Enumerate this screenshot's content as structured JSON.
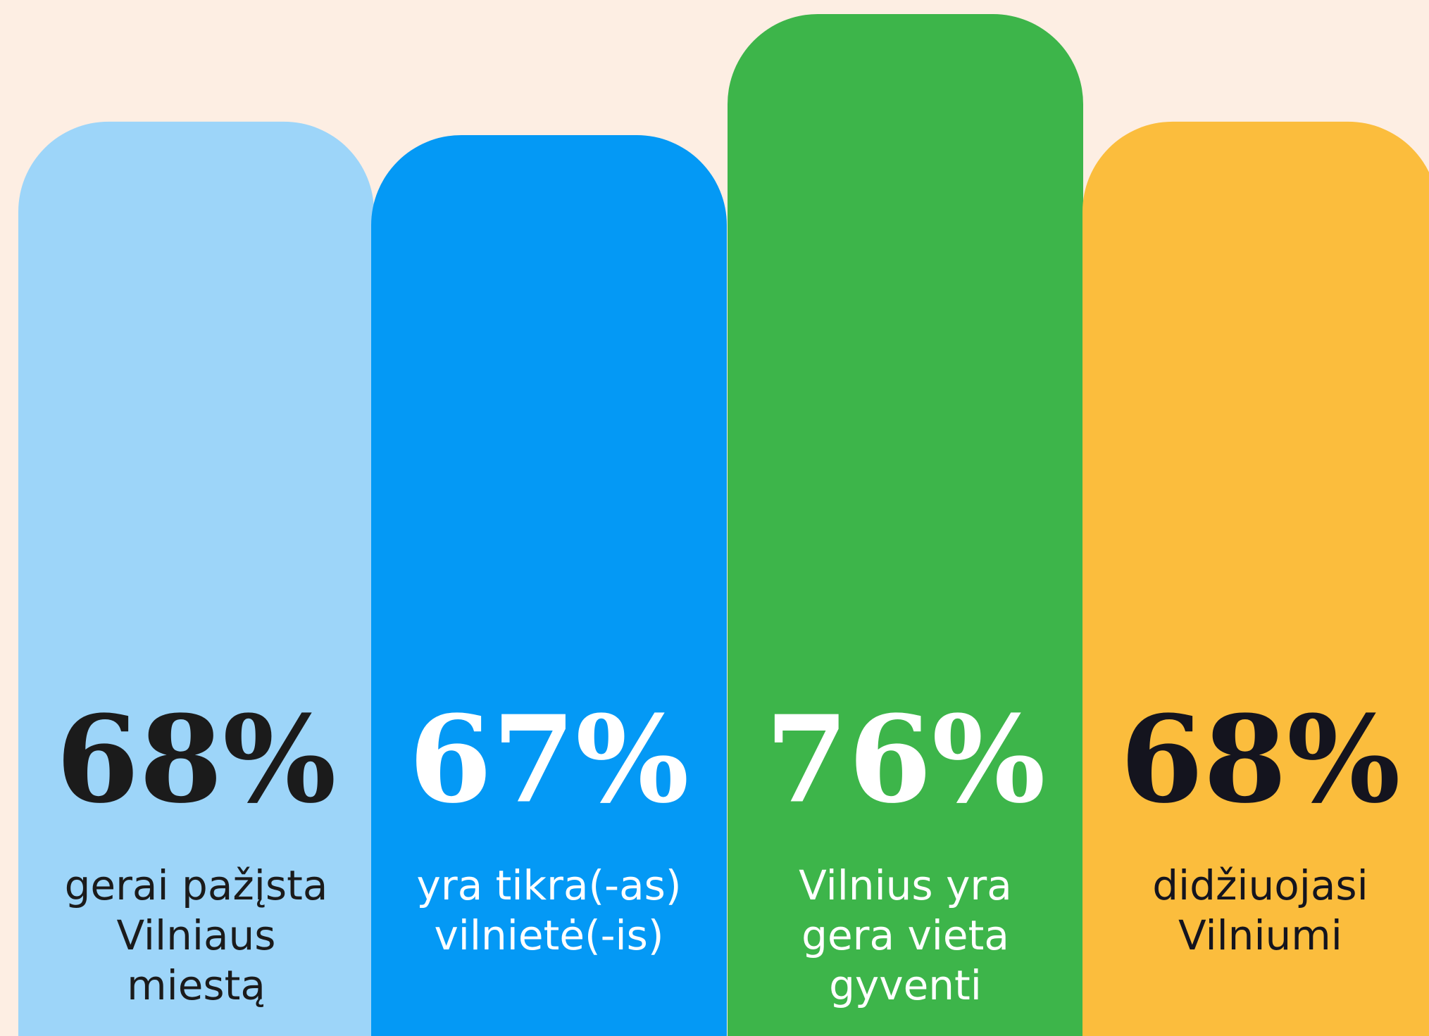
{
  "chart_data": {
    "type": "bar",
    "categories": [
      [
        "gerai pažįsta",
        "Vilniaus",
        "miestą"
      ],
      [
        "yra tikra(-as)",
        "vilnietė(-is)"
      ],
      [
        "Vilnius yra",
        "gera vieta",
        "gyventi"
      ],
      [
        "didžiuojasi",
        "Vilniumi"
      ]
    ],
    "values": [
      68,
      67,
      76,
      68
    ],
    "value_labels": [
      "68%",
      "67%",
      "76%",
      "68%"
    ],
    "colors": [
      "#9dd5f9",
      "#0499f5",
      "#3db54a",
      "#fbbd3d"
    ],
    "text_colors": [
      "#1b1b1b",
      "#ffffff",
      "#ffffff",
      "#14141e"
    ],
    "background": "#fdeee3"
  }
}
